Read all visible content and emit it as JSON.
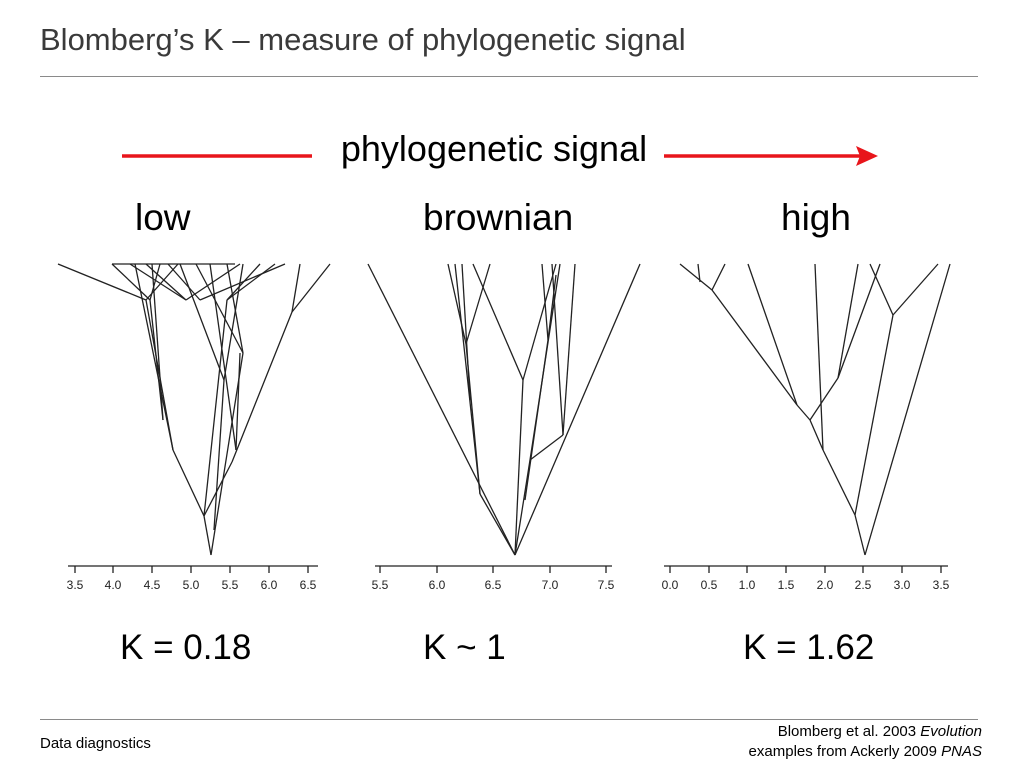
{
  "slide": {
    "title": "Blomberg’s K – measure of phylogenetic signal",
    "signal_label": "phylogenetic signal",
    "arrow_color": "#e8151b"
  },
  "panels": [
    {
      "label": "low",
      "k_label": "K = 0.18",
      "axis_ticks": [
        "3.5",
        "4.0",
        "4.5",
        "5.0",
        "5.5",
        "6.0",
        "6.5"
      ]
    },
    {
      "label": "brownian",
      "k_label": "K ~ 1",
      "axis_ticks": [
        "5.5",
        "6.0",
        "6.5",
        "7.0",
        "7.5"
      ]
    },
    {
      "label": "high",
      "k_label": "K = 1.62",
      "axis_ticks": [
        "0.0",
        "0.5",
        "1.0",
        "1.5",
        "2.0",
        "2.5",
        "3.0",
        "3.5"
      ]
    }
  ],
  "footer": {
    "left": "Data diagnostics",
    "citation_1_prefix": "Blomberg et al. 2003 ",
    "citation_1_journal": "Evolution",
    "citation_2_prefix": "examples from Ackerly 2009 ",
    "citation_2_journal": "PNAS"
  }
}
